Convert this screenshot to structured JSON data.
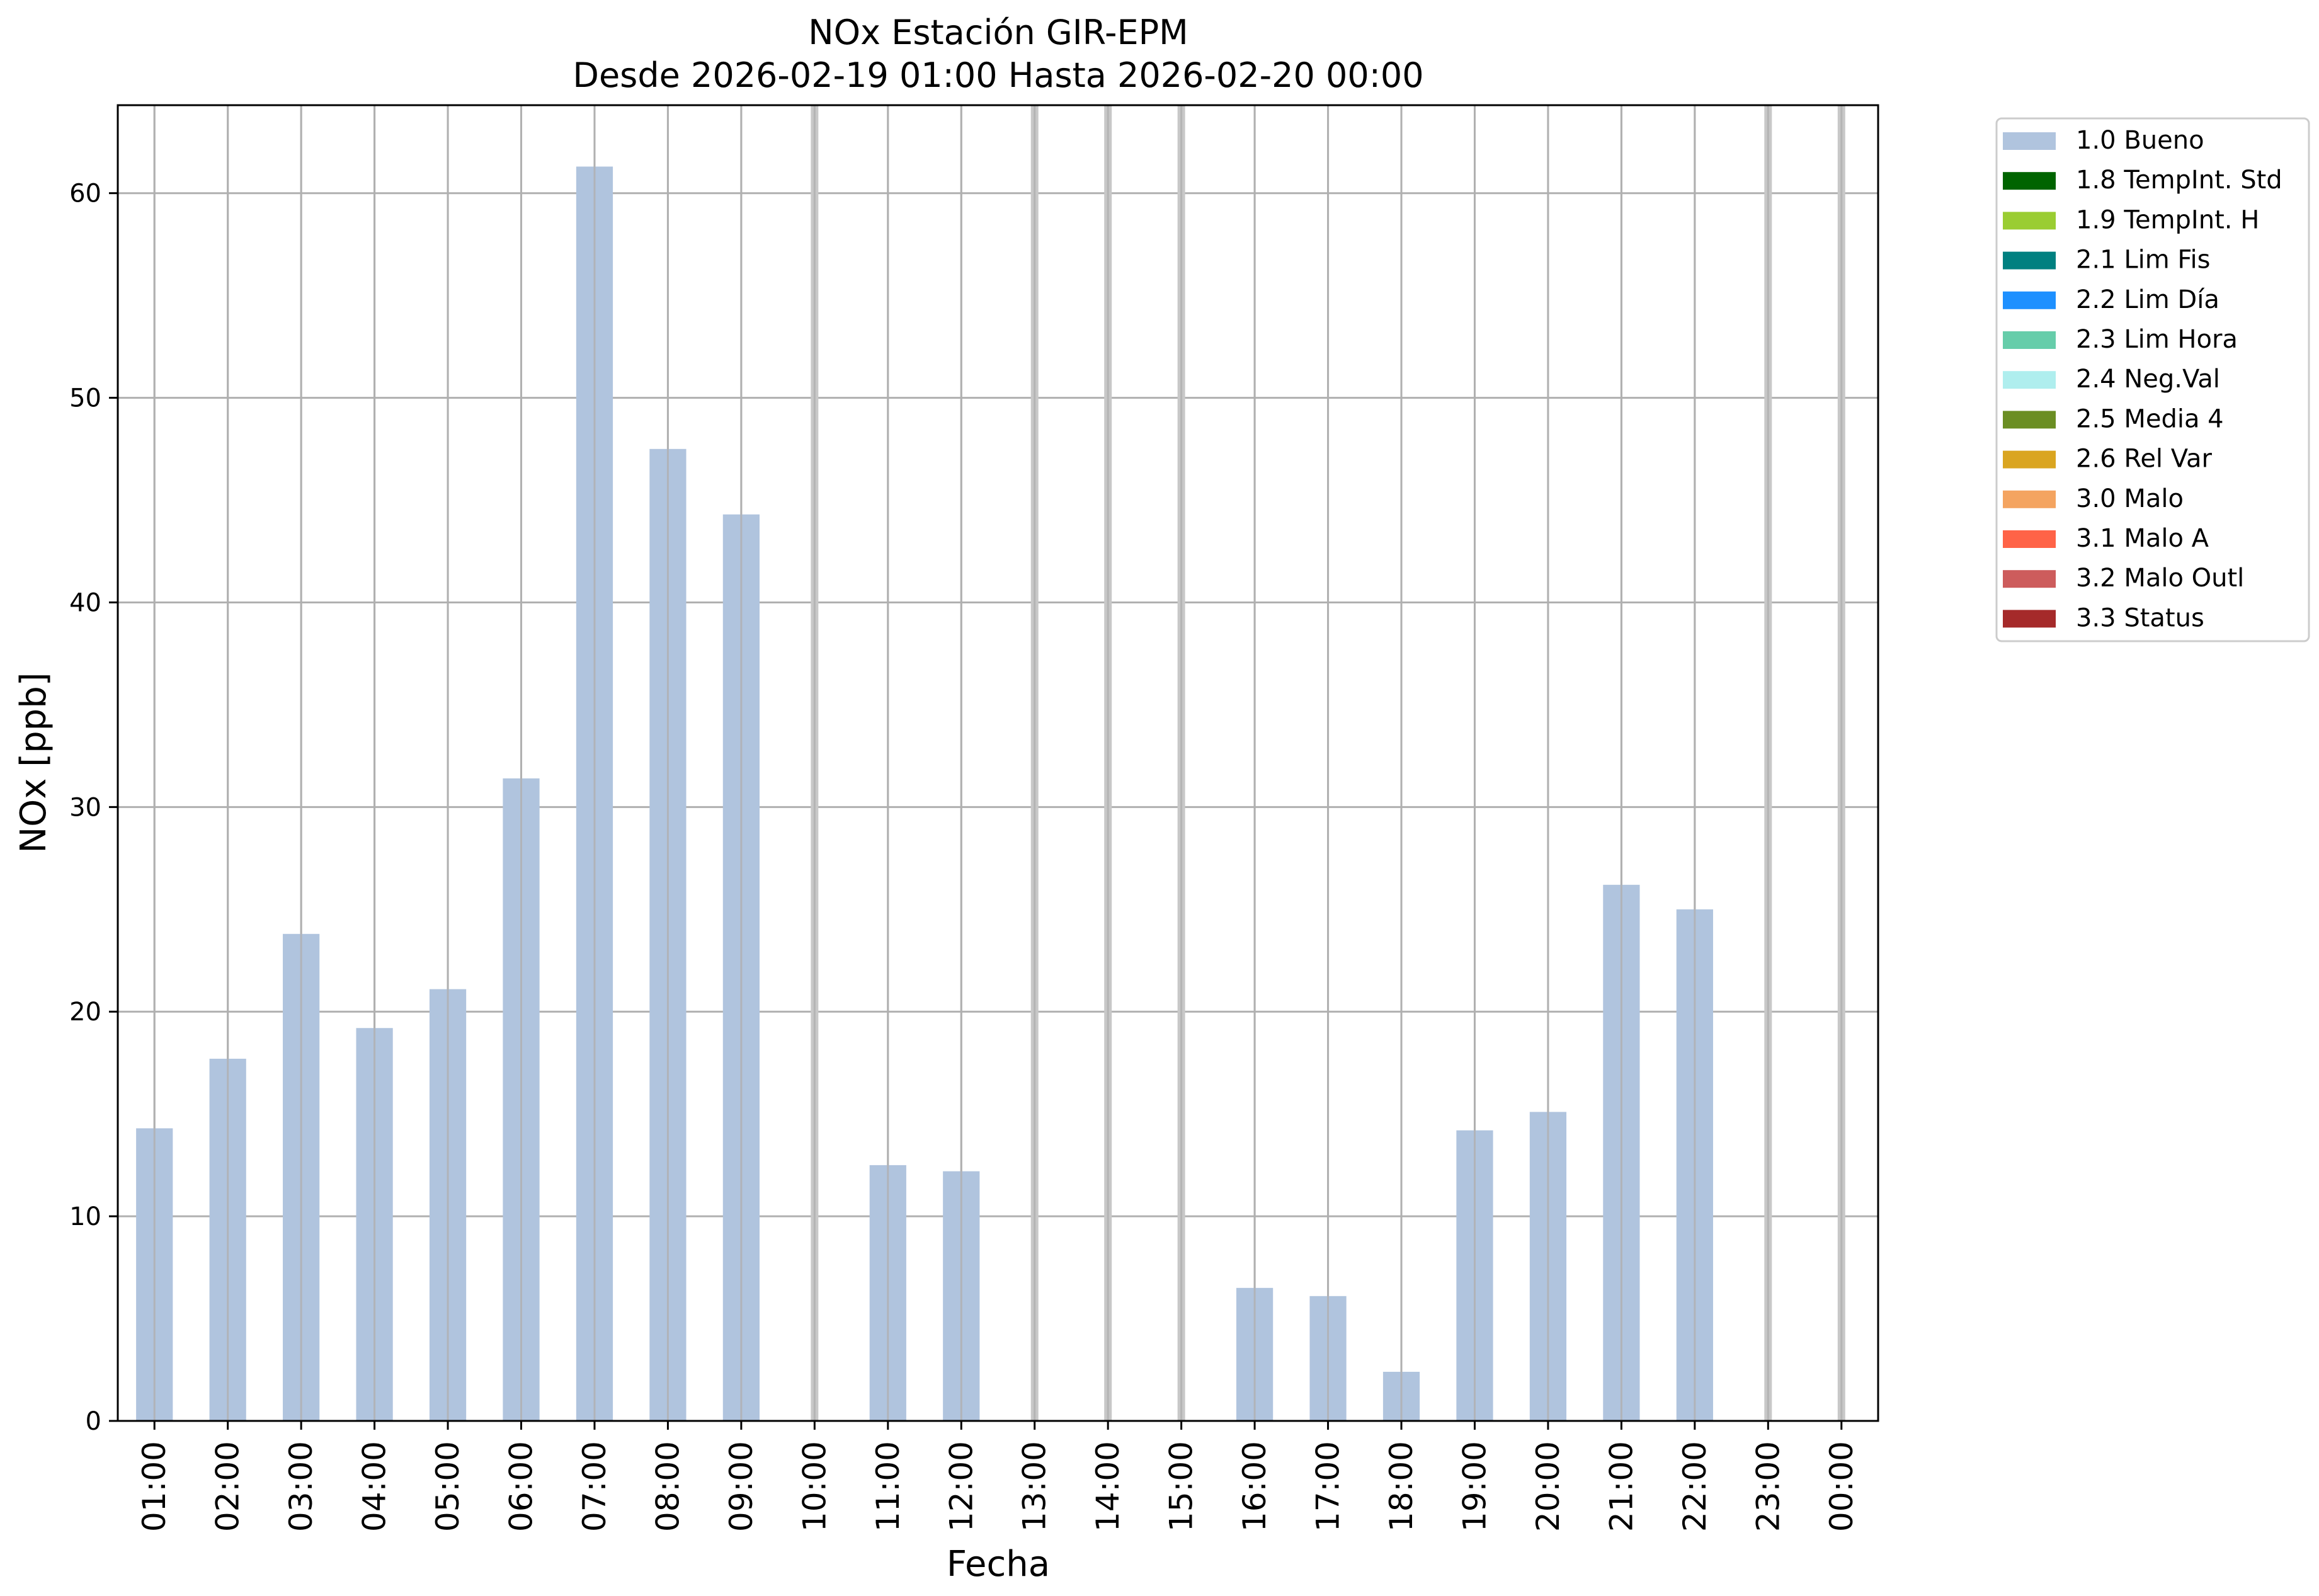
{
  "chart_data": {
    "type": "bar",
    "title": "NOx Estación GIR-EPM",
    "subtitle": "Desde 2026-02-19 01:00 Hasta 2026-02-20 00:00",
    "xlabel": "Fecha",
    "ylabel": "NOx [ppb]",
    "ylim": [
      0,
      64.3
    ],
    "yticks": [
      0,
      10,
      20,
      30,
      40,
      50,
      60
    ],
    "grid": true,
    "legend_position": "outside-top-right",
    "categories": [
      "01:00",
      "02:00",
      "03:00",
      "04:00",
      "05:00",
      "06:00",
      "07:00",
      "08:00",
      "09:00",
      "10:00",
      "11:00",
      "12:00",
      "13:00",
      "14:00",
      "15:00",
      "16:00",
      "17:00",
      "18:00",
      "19:00",
      "20:00",
      "21:00",
      "22:00",
      "23:00",
      "00:00"
    ],
    "series": [
      {
        "name": "1.0 Bueno",
        "color": "#b0c4de",
        "values": [
          14.3,
          17.7,
          23.8,
          19.2,
          21.1,
          31.4,
          61.3,
          47.5,
          44.3,
          null,
          12.5,
          12.2,
          null,
          null,
          null,
          6.5,
          6.1,
          2.4,
          14.2,
          15.1,
          26.2,
          25.0,
          null,
          null
        ]
      }
    ],
    "missing_markers": [
      "10:00",
      "13:00",
      "14:00",
      "15:00",
      "23:00",
      "00:00"
    ],
    "legend": [
      {
        "label": "1.0 Bueno",
        "color": "#b0c4de"
      },
      {
        "label": "1.8 TempInt. Std",
        "color": "#006400"
      },
      {
        "label": "1.9 TempInt. H",
        "color": "#9acd32"
      },
      {
        "label": "2.1 Lim Fis",
        "color": "#008080"
      },
      {
        "label": "2.2 Lim Día",
        "color": "#1e90ff"
      },
      {
        "label": "2.3 Lim Hora",
        "color": "#66cdaa"
      },
      {
        "label": "2.4 Neg.Val",
        "color": "#afeeee"
      },
      {
        "label": "2.5 Media 4",
        "color": "#6b8e23"
      },
      {
        "label": "2.6 Rel Var",
        "color": "#daa520"
      },
      {
        "label": "3.0 Malo",
        "color": "#f4a460"
      },
      {
        "label": "3.1 Malo A",
        "color": "#ff6347"
      },
      {
        "label": "3.2 Malo Outl",
        "color": "#cd5c5c"
      },
      {
        "label": "3.3 Status",
        "color": "#a52a2a"
      }
    ]
  }
}
